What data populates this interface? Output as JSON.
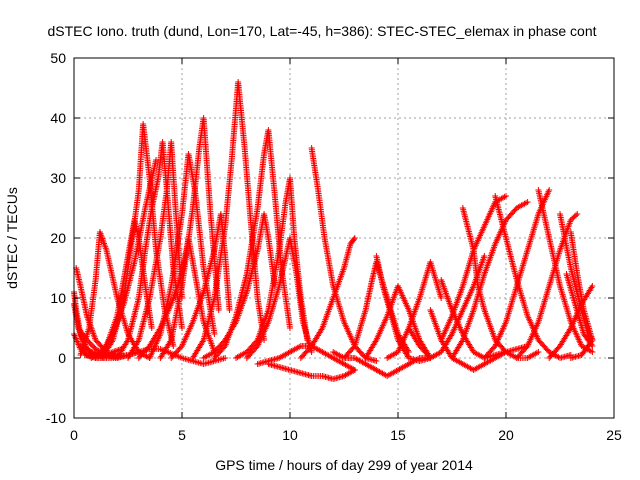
{
  "chart_data": {
    "type": "scatter",
    "title": "dSTEC Iono. truth (dund, Lon=170, Lat=-45, h=386): STEC-STEC_elemax in phase cont",
    "xlabel": "GPS time / hours of day 299 of year 2014",
    "ylabel": "dSTEC  / TECUs",
    "xlim": [
      0,
      25
    ],
    "ylim": [
      -10,
      50
    ],
    "xticks": [
      0,
      5,
      10,
      15,
      20,
      25
    ],
    "yticks": [
      -10,
      0,
      10,
      20,
      30,
      40,
      50
    ],
    "grid": true,
    "legend": "none",
    "marker": "plus",
    "color": "#ff0000",
    "arcs": [
      {
        "x": [
          0.0,
          0.1,
          0.3,
          0.6,
          1.0,
          1.5,
          2.0
        ],
        "y": [
          11,
          8,
          4,
          1.5,
          0.5,
          0.2,
          0.5
        ]
      },
      {
        "x": [
          0.0,
          0.2,
          0.5,
          0.9,
          1.3,
          1.8,
          2.2
        ],
        "y": [
          9,
          5,
          2,
          0.5,
          0.3,
          1,
          1.5
        ]
      },
      {
        "x": [
          0.0,
          0.3,
          0.6,
          1.0,
          1.4,
          1.9
        ],
        "y": [
          4,
          1.5,
          0.5,
          0.2,
          0.5,
          0.5
        ]
      },
      {
        "x": [
          0.1,
          0.3,
          0.6,
          1.0,
          1.5
        ],
        "y": [
          15,
          12,
          7,
          3,
          1
        ]
      },
      {
        "x": [
          0.2,
          0.6,
          1.0,
          1.5,
          2.0,
          2.5,
          3.0
        ],
        "y": [
          5,
          3,
          1.5,
          0.5,
          0.2,
          0.5,
          1
        ]
      },
      {
        "x": [
          0.3,
          0.8,
          1.3,
          1.8,
          2.3
        ],
        "y": [
          2,
          1,
          0.5,
          0.2,
          0.3
        ]
      },
      {
        "x": [
          0.3,
          0.7,
          1.0,
          1.2,
          1.5,
          2.0,
          2.5,
          3.0,
          3.5
        ],
        "y": [
          0.5,
          5,
          13,
          21,
          18,
          10,
          4,
          1,
          0
        ]
      },
      {
        "x": [
          0.5,
          1.0,
          1.5,
          2.0,
          2.5,
          3.0,
          3.5,
          4.0,
          5.0,
          6.0,
          7.0
        ],
        "y": [
          0.5,
          0,
          0,
          0,
          0.5,
          1,
          1.5,
          1.5,
          0,
          -1,
          0
        ]
      },
      {
        "x": [
          0.8,
          1.3,
          1.8,
          2.3,
          2.8,
          3.3,
          3.8
        ],
        "y": [
          0,
          1,
          4,
          9,
          16,
          25,
          33
        ]
      },
      {
        "x": [
          1.0,
          1.5,
          2.0,
          2.3,
          2.6,
          2.8,
          3.0,
          3.3,
          3.6
        ],
        "y": [
          0,
          2,
          7,
          13,
          19,
          23,
          20,
          12,
          5
        ]
      },
      {
        "x": [
          1.3,
          1.8,
          2.3,
          2.7,
          3.0,
          3.2,
          3.5,
          3.8,
          4.2,
          4.6
        ],
        "y": [
          0,
          3,
          10,
          20,
          28,
          39,
          30,
          18,
          8,
          2
        ]
      },
      {
        "x": [
          2.0,
          2.5,
          3.0,
          3.3,
          3.6,
          3.9,
          4.1,
          4.3,
          4.6,
          5.0
        ],
        "y": [
          0,
          3,
          10,
          18,
          25,
          30,
          36,
          28,
          15,
          5
        ]
      },
      {
        "x": [
          2.5,
          3.0,
          3.5,
          4.0,
          4.3,
          4.5,
          4.7,
          5.0
        ],
        "y": [
          0,
          3,
          10,
          20,
          28,
          36,
          25,
          10
        ]
      },
      {
        "x": [
          3.0,
          3.5,
          4.0,
          4.5,
          5.0,
          5.3,
          5.6,
          6.0,
          6.5
        ],
        "y": [
          0,
          2,
          5,
          9,
          14,
          20,
          14,
          6,
          1
        ]
      },
      {
        "x": [
          3.5,
          4.0,
          4.5,
          5.0,
          5.3,
          5.6,
          6.0,
          6.5
        ],
        "y": [
          0,
          4,
          12,
          24,
          34,
          28,
          15,
          4
        ]
      },
      {
        "x": [
          4.0,
          4.5,
          5.0,
          5.5,
          5.8,
          6.0,
          6.3,
          6.7
        ],
        "y": [
          0,
          3,
          12,
          25,
          35,
          40,
          25,
          8
        ]
      },
      {
        "x": [
          4.5,
          5.0,
          5.5,
          6.0,
          6.5,
          6.8,
          7.0,
          7.2
        ],
        "y": [
          0,
          2,
          6,
          11,
          18,
          24,
          17,
          8
        ]
      },
      {
        "x": [
          5.5,
          6.0,
          6.5,
          7.0,
          7.3,
          7.6,
          7.9,
          8.2,
          8.5,
          8.8
        ],
        "y": [
          0,
          3,
          10,
          22,
          33,
          46,
          35,
          22,
          10,
          3
        ]
      },
      {
        "x": [
          6.0,
          6.5,
          7.0,
          7.5,
          8.0,
          8.5,
          8.8,
          9.0,
          9.3
        ],
        "y": [
          0,
          1,
          3,
          6,
          11,
          18,
          24,
          20,
          12
        ]
      },
      {
        "x": [
          6.5,
          7.0,
          7.5,
          8.0,
          8.5,
          8.8,
          9.0,
          9.3,
          9.6,
          10.0
        ],
        "y": [
          0,
          2,
          7,
          14,
          25,
          34,
          38,
          27,
          15,
          5
        ]
      },
      {
        "x": [
          7.5,
          8.0,
          8.5,
          9.0,
          9.5,
          9.8,
          10.0,
          10.2,
          10.5,
          10.8
        ],
        "y": [
          0,
          1,
          3,
          8,
          18,
          26,
          30,
          20,
          10,
          3
        ]
      },
      {
        "x": [
          8.0,
          8.5,
          9.0,
          9.5,
          10.0,
          10.3,
          10.6,
          11.0
        ],
        "y": [
          0,
          2,
          6,
          12,
          20,
          14,
          6,
          1
        ]
      },
      {
        "x": [
          8.5,
          9.0,
          9.5,
          10.0,
          10.5,
          11.0,
          11.5,
          12.0,
          12.5,
          13.0
        ],
        "y": [
          -1,
          -0.5,
          0,
          1,
          2,
          2,
          1,
          0,
          -1,
          -2
        ]
      },
      {
        "x": [
          9.0,
          9.5,
          10.0,
          10.5,
          11.0,
          11.5,
          12.0,
          12.5,
          13.0
        ],
        "y": [
          -1,
          -1.5,
          -2,
          -2.5,
          -3,
          -3,
          -3.5,
          -3,
          -2
        ]
      },
      {
        "x": [
          11.0,
          11.3,
          11.6,
          12.0,
          12.5,
          13.0,
          13.5,
          14.0
        ],
        "y": [
          35,
          28,
          20,
          12,
          6,
          2,
          0,
          -0.5
        ]
      },
      {
        "x": [
          10.5,
          11.0,
          11.5,
          12.0,
          12.5,
          12.8,
          13.0
        ],
        "y": [
          0,
          2,
          5,
          10,
          15,
          19,
          20
        ]
      },
      {
        "x": [
          12.0,
          12.5,
          13.0,
          13.5,
          13.8,
          14.0,
          14.5,
          15.0,
          15.5
        ],
        "y": [
          1,
          0,
          2,
          8,
          13,
          16,
          10,
          4,
          1
        ]
      },
      {
        "x": [
          12.5,
          13.0,
          13.5,
          14.0,
          14.5,
          15.0,
          15.5,
          16.0,
          16.5
        ],
        "y": [
          0,
          0,
          -1,
          -2,
          -3,
          -2,
          -1,
          0,
          0
        ]
      },
      {
        "x": [
          13.5,
          14.0,
          14.5,
          15.0,
          15.5,
          16.0,
          16.5
        ],
        "y": [
          0,
          3,
          7,
          12,
          8,
          3,
          0
        ]
      },
      {
        "x": [
          14.0,
          14.3,
          14.7,
          15.0,
          15.5,
          16.0,
          16.5
        ],
        "y": [
          17,
          12,
          7,
          3,
          0,
          -0.5,
          0
        ]
      },
      {
        "x": [
          14.5,
          15.0,
          15.5,
          16.0,
          16.5,
          17.0
        ],
        "y": [
          0,
          1,
          5,
          10,
          16,
          10
        ]
      },
      {
        "x": [
          15.5,
          16.0,
          16.5,
          17.0,
          17.5,
          18.0,
          18.5,
          19.0
        ],
        "y": [
          5,
          2,
          0,
          1,
          4,
          8,
          12,
          17
        ]
      },
      {
        "x": [
          16.5,
          17.0,
          17.5,
          18.0,
          18.5,
          19.0,
          19.5,
          20.0,
          20.5,
          21.0
        ],
        "y": [
          8,
          3,
          0,
          -1,
          -2,
          -1,
          0,
          1,
          1.5,
          2
        ]
      },
      {
        "x": [
          17.0,
          17.5,
          18.0,
          18.5,
          19.0,
          19.5,
          20.0
        ],
        "y": [
          3,
          7,
          12,
          18,
          22,
          26,
          27
        ]
      },
      {
        "x": [
          17.0,
          17.5,
          18.0,
          18.5,
          19.0,
          19.5,
          20.0
        ],
        "y": [
          13,
          8,
          4,
          1,
          0,
          0.5,
          1
        ]
      },
      {
        "x": [
          17.5,
          18.0,
          18.5,
          19.0,
          19.5,
          20.0,
          20.5,
          21.0
        ],
        "y": [
          0,
          3,
          8,
          14,
          19,
          23,
          25,
          26
        ]
      },
      {
        "x": [
          18.0,
          18.5,
          18.7,
          19.0,
          19.5,
          20.0,
          20.5,
          21.0,
          21.5
        ],
        "y": [
          25,
          18,
          12,
          8,
          3,
          1,
          0,
          0,
          1
        ]
      },
      {
        "x": [
          19.0,
          19.5,
          20.0,
          20.5,
          21.0,
          21.5,
          22.0
        ],
        "y": [
          0,
          2,
          6,
          12,
          18,
          24,
          28
        ]
      },
      {
        "x": [
          19.5,
          20.0,
          20.5,
          21.0,
          21.5,
          22.0,
          22.5,
          23.0
        ],
        "y": [
          27,
          20,
          13,
          7,
          3,
          1,
          0,
          0.5
        ]
      },
      {
        "x": [
          20.5,
          21.0,
          21.5,
          22.0,
          22.5,
          23.0,
          23.3
        ],
        "y": [
          0,
          2,
          6,
          12,
          18,
          23,
          24
        ]
      },
      {
        "x": [
          21.5,
          22.0,
          22.5,
          23.0,
          23.5,
          24.0
        ],
        "y": [
          28,
          20,
          12,
          6,
          2,
          1
        ]
      },
      {
        "x": [
          22.5,
          23.0,
          23.5,
          23.8,
          24.0
        ],
        "y": [
          24,
          15,
          8,
          4,
          3
        ]
      },
      {
        "x": [
          22.0,
          22.5,
          23.0,
          23.5,
          24.0
        ],
        "y": [
          0,
          2,
          5,
          9,
          12
        ]
      },
      {
        "x": [
          23.0,
          23.3,
          23.6,
          24.0
        ],
        "y": [
          21,
          14,
          8,
          3
        ]
      },
      {
        "x": [
          22.8,
          23.2,
          23.6,
          24.0
        ],
        "y": [
          14,
          9,
          4,
          2
        ]
      },
      {
        "x": [
          23.0,
          23.5,
          24.0
        ],
        "y": [
          0,
          0.5,
          3
        ]
      }
    ]
  }
}
